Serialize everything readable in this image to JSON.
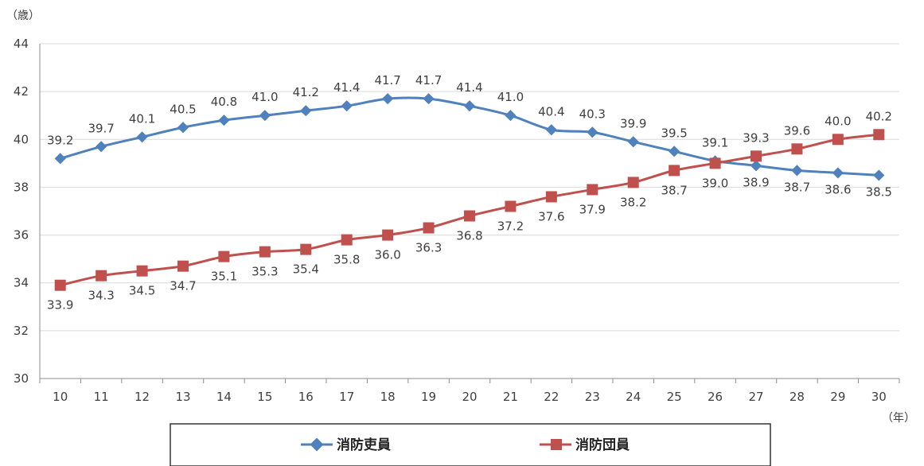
{
  "chart_data": {
    "type": "line",
    "y_unit_label": "（歳）",
    "x_unit_label": "（年）",
    "ylim": [
      30,
      44
    ],
    "yticks": [
      "30",
      "32",
      "34",
      "36",
      "38",
      "40",
      "42",
      "44"
    ],
    "categories": [
      "10",
      "11",
      "12",
      "13",
      "14",
      "15",
      "16",
      "17",
      "18",
      "19",
      "20",
      "21",
      "22",
      "23",
      "24",
      "25",
      "26",
      "27",
      "28",
      "29",
      "30"
    ],
    "grid": "horizontal",
    "legend_position": "bottom",
    "series": [
      {
        "name": "消防吏員",
        "color": "#4f81bd",
        "marker": "diamond",
        "values": [
          39.2,
          39.7,
          40.1,
          40.5,
          40.8,
          41.0,
          41.2,
          41.4,
          41.7,
          41.7,
          41.4,
          41.0,
          40.4,
          40.3,
          39.9,
          39.5,
          39.1,
          38.9,
          38.7,
          38.6,
          38.5
        ],
        "labels": [
          "39.2",
          "39.7",
          "40.1",
          "40.5",
          "40.8",
          "41.0",
          "41.2",
          "41.4",
          "41.7",
          "41.7",
          "41.4",
          "41.0",
          "40.4",
          "40.3",
          "39.9",
          "39.5",
          "39.1",
          "38.9",
          "38.7",
          "38.6",
          "38.5"
        ]
      },
      {
        "name": "消防団員",
        "color": "#c0504d",
        "marker": "square",
        "values": [
          33.9,
          34.3,
          34.5,
          34.7,
          35.1,
          35.3,
          35.4,
          35.8,
          36.0,
          36.3,
          36.8,
          37.2,
          37.6,
          37.9,
          38.2,
          38.7,
          39.0,
          39.3,
          39.6,
          40.0,
          40.2
        ],
        "labels": [
          "33.9",
          "34.3",
          "34.5",
          "34.7",
          "35.1",
          "35.3",
          "35.4",
          "35.8",
          "36.0",
          "36.3",
          "36.8",
          "37.2",
          "37.6",
          "37.9",
          "38.2",
          "38.7",
          "39.0",
          "39.3",
          "39.6",
          "40.0",
          "40.2"
        ]
      }
    ]
  }
}
